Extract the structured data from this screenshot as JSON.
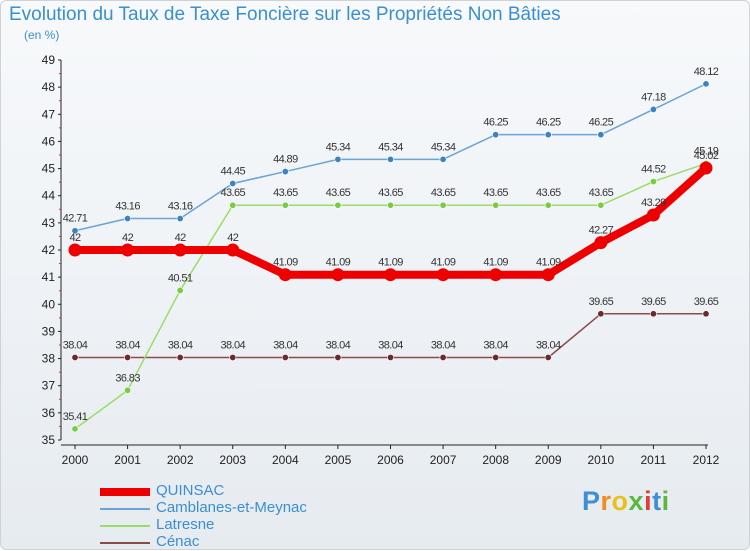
{
  "title": "Evolution du Taux de Taxe Foncière sur les Propriétés Non Bâties",
  "subtitle": "(en %)",
  "logo_text": "Proxiti",
  "chart_data": {
    "type": "line",
    "title": "Evolution du Taux de Taxe Foncière sur les Propriétés Non Bâties",
    "ylabel": "(en %)",
    "xlabel": "",
    "ylim": [
      35,
      49
    ],
    "yticks": [
      35,
      36,
      37,
      38,
      39,
      40,
      41,
      42,
      43,
      44,
      45,
      46,
      47,
      48,
      49
    ],
    "categories": [
      "2000",
      "2001",
      "2002",
      "2003",
      "2004",
      "2005",
      "2006",
      "2007",
      "2008",
      "2009",
      "2010",
      "2011",
      "2012"
    ],
    "grid": false,
    "legend_position": "bottom-left",
    "series": [
      {
        "name": "QUINSAC",
        "color": "#ee0000",
        "values": [
          42,
          42,
          42,
          42,
          41.09,
          41.09,
          41.09,
          41.09,
          41.09,
          41.09,
          42.27,
          43.29,
          45.02
        ],
        "labels": [
          "42",
          "42",
          "42",
          "42",
          "41.09",
          "41.09",
          "41.09",
          "41.09",
          "41.09",
          "41.09",
          "42.27",
          "43.29",
          "45.02"
        ]
      },
      {
        "name": "Camblanes-et-Meynac",
        "color": "#6aa3d6",
        "values": [
          42.71,
          43.16,
          43.16,
          44.45,
          44.89,
          45.34,
          45.34,
          45.34,
          46.25,
          46.25,
          46.25,
          47.18,
          48.12
        ],
        "labels": [
          "42.71",
          "43.16",
          "43.16",
          "44.45",
          "44.89",
          "45.34",
          "45.34",
          "45.34",
          "46.25",
          "46.25",
          "46.25",
          "47.18",
          "48.12"
        ]
      },
      {
        "name": "Latresne",
        "color": "#99dd66",
        "values": [
          35.41,
          36.83,
          40.51,
          43.65,
          43.65,
          43.65,
          43.65,
          43.65,
          43.65,
          43.65,
          43.65,
          44.52,
          45.19
        ],
        "labels": [
          "35.41",
          "36.83",
          "40.51",
          "43.65",
          "43.65",
          "43.65",
          "43.65",
          "43.65",
          "43.65",
          "43.65",
          "43.65",
          "44.52",
          "45.19"
        ]
      },
      {
        "name": "Cénac",
        "color": "#8a4b4b",
        "values": [
          38.04,
          38.04,
          38.04,
          38.04,
          38.04,
          38.04,
          38.04,
          38.04,
          38.04,
          38.04,
          39.65,
          39.65,
          39.65
        ],
        "labels": [
          "38.04",
          "38.04",
          "38.04",
          "38.04",
          "38.04",
          "38.04",
          "38.04",
          "38.04",
          "38.04",
          "38.04",
          "39.65",
          "39.65",
          "39.65"
        ]
      }
    ]
  }
}
